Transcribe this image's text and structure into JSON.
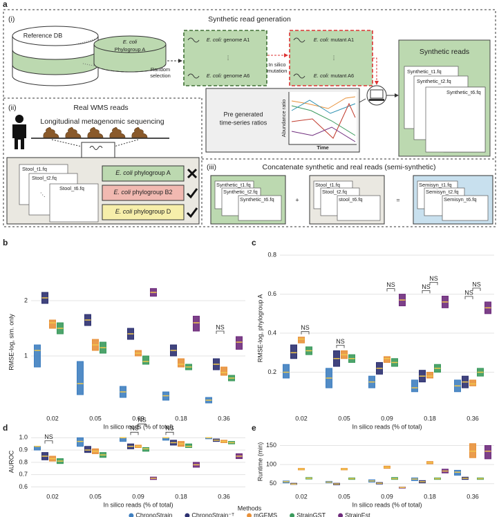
{
  "panel_a": {
    "label": "a",
    "section_i": {
      "tag": "(i)",
      "title": "Synthetic read generation",
      "reference_db": "Reference DB",
      "phylogroup": {
        "species": "E. coli",
        "name": "Phylogroup A"
      },
      "random_selection": [
        "Random",
        "selection"
      ],
      "genomes": [
        {
          "species": "E. coli:",
          "name": "genome A1"
        },
        {
          "species": "E. coli:",
          "name": "genome A6"
        }
      ],
      "in_silico": [
        "In silico",
        "mutation"
      ],
      "mutants": [
        {
          "species": "E. coli:",
          "name": "mutant A1"
        },
        {
          "species": "E. coli:",
          "name": "mutant A6"
        }
      ],
      "synthetic_title": "Synthetic reads",
      "synthetic_files": [
        "Synthetic_t1.fq",
        "Synthetic_t2.fq",
        "Synthetic_t6.fq"
      ],
      "ratios": [
        "Pre generated",
        "time-series ratios"
      ],
      "ratio_ylabel": "Abundance ratio",
      "ratio_xlabel": "Time"
    },
    "section_ii": {
      "tag": "(ii)",
      "title": "Real WMS reads",
      "subtitle": "Longitudinal metagenomic sequencing",
      "files": [
        "Stool_t1.fq",
        "Stool_t2.fq",
        "Stool_t6.fq"
      ],
      "phylogroups": [
        {
          "species": "E. coli",
          "name": "phylogroup A"
        },
        {
          "species": "E. coli",
          "name": "phylogroup B2"
        },
        {
          "species": "E. coli",
          "name": "phylogroup D"
        }
      ]
    },
    "section_iii": {
      "tag": "(iii)",
      "title": "Concatenate synthetic and real reads (semi-synthetic)",
      "synthetic_files": [
        "Synthetic_t1.fq",
        "Synthetic_t2.fq",
        "Synthetic_t6.fq"
      ],
      "stool_files": [
        "Stool_t1.fq",
        "Stool_t2.fq",
        "stool_t6.fq"
      ],
      "semisyn_files": [
        "Semisyn_t1.fq",
        "Semisyn_t2.fq",
        "Semisyn_t6.fq"
      ],
      "plus": "+",
      "equals": "="
    }
  },
  "legend": {
    "title": "Methods",
    "entries": [
      {
        "name": "ChronoStrain",
        "color": "#3f7fc0"
      },
      {
        "name": "ChronoStrain⁻ᵀ",
        "color": "#2c3070"
      },
      {
        "name": "mGEMS",
        "color": "#e8913a"
      },
      {
        "name": "StrainGST",
        "color": "#3a9a5c"
      },
      {
        "name": "StrainEst",
        "color": "#6e2b7c"
      }
    ]
  },
  "chart_data": [
    {
      "type": "box",
      "panel_label": "b",
      "ylabel": "RMSE-log, sim. only",
      "xlabel": "In silico reads (% of total)",
      "categories": [
        "0.02",
        "0.05",
        "0.09",
        "0.18",
        "0.36"
      ],
      "ylim": [
        0,
        2.5
      ],
      "yticks": [
        1,
        2
      ],
      "grid": true,
      "series": [
        {
          "median": [
            1.1,
            0.5,
            0.35,
            0.28,
            0.2
          ],
          "q1": [
            0.8,
            0.3,
            0.25,
            0.2,
            0.15
          ],
          "q3": [
            1.2,
            0.9,
            0.45,
            0.35,
            0.25
          ]
        },
        {
          "median": [
            2.05,
            1.65,
            1.4,
            1.1,
            0.85
          ],
          "q1": [
            1.95,
            1.55,
            1.3,
            1.0,
            0.75
          ],
          "q3": [
            2.15,
            1.75,
            1.5,
            1.2,
            0.95
          ]
        },
        {
          "median": [
            1.6,
            1.2,
            1.05,
            0.85,
            0.7
          ],
          "q1": [
            1.5,
            1.1,
            1.0,
            0.8,
            0.65
          ],
          "q3": [
            1.65,
            1.3,
            1.1,
            0.95,
            0.8
          ]
        },
        {
          "median": [
            1.5,
            1.15,
            0.9,
            0.8,
            0.6
          ],
          "q1": [
            1.4,
            1.05,
            0.85,
            0.75,
            0.55
          ],
          "q3": [
            1.6,
            1.25,
            1.0,
            0.85,
            0.65
          ]
        },
        {
          "median": [
            null,
            null,
            2.15,
            1.6,
            1.25
          ],
          "q1": [
            null,
            null,
            2.08,
            1.45,
            1.12
          ],
          "q3": [
            null,
            null,
            2.22,
            1.72,
            1.35
          ]
        }
      ],
      "significance": [
        {
          "label": "NS",
          "category": "0.36",
          "between": [
            "ChronoStrain⁻ᵀ",
            "mGEMS"
          ]
        }
      ]
    },
    {
      "type": "box",
      "panel_label": "c",
      "ylabel": "RMSE-log, phylogroup A",
      "xlabel": "In silico reads (% of total)",
      "categories": [
        "0.02",
        "0.05",
        "0.09",
        "0.18",
        "0.36"
      ],
      "ylim": [
        0,
        0.85
      ],
      "yticks": [
        0.2,
        0.4,
        0.6,
        0.8
      ],
      "grid": true,
      "series": [
        {
          "median": [
            0.2,
            0.17,
            0.15,
            0.12,
            0.13
          ],
          "q1": [
            0.17,
            0.12,
            0.12,
            0.1,
            0.1
          ],
          "q3": [
            0.24,
            0.22,
            0.18,
            0.16,
            0.16
          ]
        },
        {
          "median": [
            0.3,
            0.27,
            0.22,
            0.18,
            0.15
          ],
          "q1": [
            0.27,
            0.23,
            0.19,
            0.15,
            0.12
          ],
          "q3": [
            0.34,
            0.31,
            0.25,
            0.21,
            0.18
          ]
        },
        {
          "median": [
            0.37,
            0.29,
            0.27,
            0.18,
            0.14
          ],
          "q1": [
            0.35,
            0.27,
            0.25,
            0.17,
            0.13
          ],
          "q3": [
            0.38,
            0.31,
            0.28,
            0.2,
            0.16
          ]
        },
        {
          "median": [
            0.31,
            0.27,
            0.25,
            0.22,
            0.2
          ],
          "q1": [
            0.29,
            0.25,
            0.23,
            0.2,
            0.18
          ],
          "q3": [
            0.33,
            0.29,
            0.27,
            0.24,
            0.22
          ]
        },
        {
          "median": [
            null,
            null,
            0.57,
            0.56,
            0.53
          ],
          "q1": [
            null,
            null,
            0.54,
            0.53,
            0.5
          ],
          "q3": [
            null,
            null,
            0.6,
            0.59,
            0.56
          ]
        }
      ],
      "significance": [
        {
          "label": "NS",
          "category": "0.02",
          "between": [
            "mGEMS",
            "StrainGST"
          ]
        },
        {
          "label": "NS",
          "category": "0.05",
          "between": [
            "ChronoStrain⁻ᵀ",
            "mGEMS"
          ]
        },
        {
          "label": "NS",
          "category": "0.09",
          "between": [
            "mGEMS",
            "StrainGST"
          ]
        },
        {
          "label": "NS",
          "category": "0.18",
          "between": [
            "ChronoStrain⁻ᵀ",
            "mGEMS"
          ]
        },
        {
          "label": "NS",
          "category": "0.18",
          "between": [
            "mGEMS",
            "StrainGST"
          ]
        },
        {
          "label": "NS",
          "category": "0.36",
          "between": [
            "ChronoStrain⁻ᵀ",
            "mGEMS"
          ]
        },
        {
          "label": "NS",
          "category": "0.36",
          "between": [
            "mGEMS",
            "StrainGST"
          ]
        }
      ]
    },
    {
      "type": "box",
      "panel_label": "d",
      "ylabel": "AUROC",
      "xlabel": "In silico reads (% of total)",
      "categories": [
        "0.02",
        "0.05",
        "0.09",
        "0.18",
        "0.36"
      ],
      "ylim": [
        0.58,
        1.03
      ],
      "yticks": [
        0.6,
        0.7,
        0.8,
        0.9,
        {
          "value": 1,
          "label": "1.0"
        }
      ],
      "grid": true,
      "series": [
        {
          "median": [
            0.93,
            0.97,
            1.0,
            1.0,
            1.0
          ],
          "q1": [
            0.9,
            0.93,
            0.97,
            0.98,
            0.995
          ],
          "q3": [
            0.93,
            1.0,
            1.0,
            1.0,
            1.0
          ]
        },
        {
          "median": [
            0.85,
            0.9,
            0.93,
            0.96,
            0.98
          ],
          "q1": [
            0.82,
            0.88,
            0.91,
            0.94,
            0.97
          ],
          "q3": [
            0.88,
            0.93,
            0.95,
            0.98,
            0.99
          ]
        },
        {
          "median": [
            0.83,
            0.89,
            0.93,
            0.95,
            0.97
          ],
          "q1": [
            0.81,
            0.87,
            0.92,
            0.93,
            0.96
          ],
          "q3": [
            0.85,
            0.91,
            0.94,
            0.97,
            0.98
          ]
        },
        {
          "median": [
            0.81,
            0.86,
            0.91,
            0.93,
            0.96
          ],
          "q1": [
            0.79,
            0.84,
            0.89,
            0.92,
            0.95
          ],
          "q3": [
            0.83,
            0.88,
            0.92,
            0.95,
            0.97
          ]
        },
        {
          "median": [
            null,
            null,
            0.67,
            0.78,
            0.85
          ],
          "q1": [
            null,
            null,
            0.66,
            0.76,
            0.83
          ],
          "q3": [
            null,
            null,
            0.68,
            0.8,
            0.87
          ]
        }
      ],
      "significance": [
        {
          "label": "NS",
          "category": "0.02",
          "between": [
            "ChronoStrain⁻ᵀ",
            "mGEMS"
          ]
        },
        {
          "label": "NS",
          "category": "0.09",
          "between": [
            "ChronoStrain⁻ᵀ",
            "mGEMS"
          ]
        },
        {
          "label": "NS",
          "category": "0.09",
          "between": [
            "mGEMS",
            "StrainGST"
          ]
        },
        {
          "label": "NS",
          "category": "0.18",
          "between": [
            "ChronoStrain",
            "ChronoStrain⁻ᵀ"
          ]
        }
      ]
    },
    {
      "type": "box",
      "panel_label": "e",
      "ylabel": "Runtime (min)",
      "xlabel": "In silico reads (% of total)",
      "categories": [
        "0.02",
        "0.05",
        "0.09",
        "0.18",
        "0.36"
      ],
      "ylim": [
        35,
        180
      ],
      "yticks": [
        50,
        100,
        150
      ],
      "grid": true,
      "series": [
        {
          "median": [
            55,
            54,
            57,
            62,
            80
          ],
          "q1": [
            52,
            52,
            54,
            58,
            72
          ],
          "q3": [
            57,
            56,
            60,
            65,
            85
          ]
        },
        {
          "median": [
            49,
            49,
            51,
            55,
            64
          ],
          "q1": [
            48,
            47,
            49,
            52,
            61
          ],
          "q3": [
            51,
            51,
            53,
            58,
            67
          ]
        },
        {
          "median": [
            88,
            88,
            93,
            105,
            135
          ],
          "q1": [
            86,
            86,
            90,
            102,
            118
          ],
          "q3": [
            90,
            90,
            96,
            108,
            155
          ]
        },
        {
          "median": [
            64,
            63,
            63,
            63,
            63
          ],
          "q1": [
            62,
            61,
            61,
            61,
            61
          ],
          "q3": [
            66,
            65,
            66,
            65,
            65
          ]
        },
        {
          "median": [
            null,
            null,
            40,
            83,
            135
          ],
          "q1": [
            null,
            null,
            39,
            78,
            115
          ],
          "q3": [
            null,
            null,
            41,
            88,
            150
          ]
        }
      ],
      "significance": []
    }
  ]
}
